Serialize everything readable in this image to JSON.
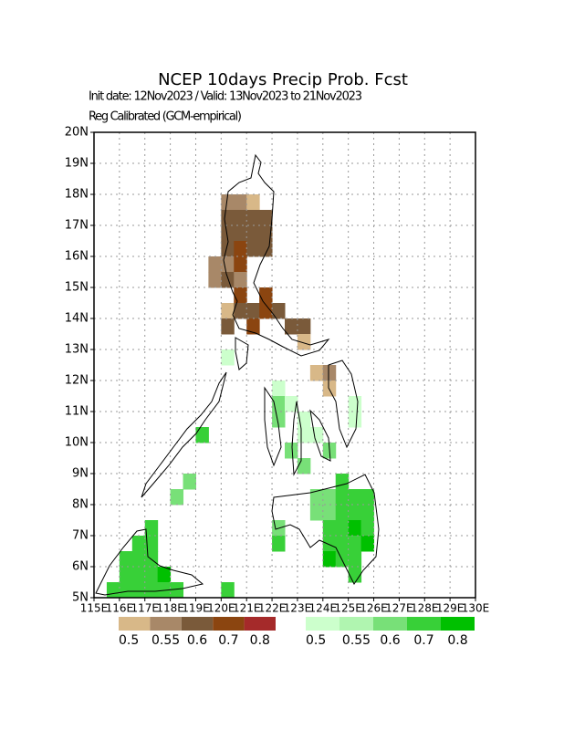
{
  "chart_data": {
    "type": "grid-map",
    "title": "NCEP 10days Precip Prob. Fcst",
    "subtitle": "Init date: 12Nov2023 / Valid: 13Nov2023 to 21Nov2023",
    "note": "Reg Calibrated (GCM-empirical)",
    "xlim": [
      115,
      130
    ],
    "ylim": [
      5,
      20
    ],
    "xticks": [
      {
        "value": 115,
        "label": "115E"
      },
      {
        "value": 116,
        "label": "116E"
      },
      {
        "value": 117,
        "label": "117E"
      },
      {
        "value": 118,
        "label": "118E"
      },
      {
        "value": 119,
        "label": "119E"
      },
      {
        "value": 120,
        "label": "120E"
      },
      {
        "value": 121,
        "label": "121E"
      },
      {
        "value": 122,
        "label": "122E"
      },
      {
        "value": 123,
        "label": "123E"
      },
      {
        "value": 124,
        "label": "124E"
      },
      {
        "value": 125,
        "label": "125E"
      },
      {
        "value": 126,
        "label": "126E"
      },
      {
        "value": 127,
        "label": "127E"
      },
      {
        "value": 128,
        "label": "128E"
      },
      {
        "value": 129,
        "label": "129E"
      },
      {
        "value": 130,
        "label": "130E"
      }
    ],
    "yticks": [
      {
        "value": 5,
        "label": "5N"
      },
      {
        "value": 6,
        "label": "6N"
      },
      {
        "value": 7,
        "label": "7N"
      },
      {
        "value": 8,
        "label": "8N"
      },
      {
        "value": 9,
        "label": "9N"
      },
      {
        "value": 10,
        "label": "10N"
      },
      {
        "value": 11,
        "label": "11N"
      },
      {
        "value": 12,
        "label": "12N"
      },
      {
        "value": 13,
        "label": "13N"
      },
      {
        "value": 14,
        "label": "14N"
      },
      {
        "value": 15,
        "label": "15N"
      },
      {
        "value": 16,
        "label": "16N"
      },
      {
        "value": 17,
        "label": "17N"
      },
      {
        "value": 18,
        "label": "18N"
      },
      {
        "value": 19,
        "label": "19N"
      },
      {
        "value": 20,
        "label": "20N"
      }
    ],
    "grid": true,
    "cell_size": 0.5,
    "series": [
      {
        "colors": [
          "#d8b888",
          "#a88868",
          "#7a5a3a",
          "#8b4510",
          "#a52a2a"
        ],
        "levels": [
          0.5,
          0.55,
          0.6,
          0.7,
          0.8
        ],
        "cells": [
          [
            120,
            17.5,
            0.55
          ],
          [
            120.5,
            17.5,
            0.55
          ],
          [
            121,
            17.5,
            0.5
          ],
          [
            120,
            17,
            0.6
          ],
          [
            120.5,
            17,
            0.6
          ],
          [
            121,
            17,
            0.6
          ],
          [
            121.5,
            17,
            0.6
          ],
          [
            120,
            16.5,
            0.6
          ],
          [
            120.5,
            16.5,
            0.6
          ],
          [
            121,
            16.5,
            0.6
          ],
          [
            121.5,
            16.5,
            0.6
          ],
          [
            120,
            16,
            0.6
          ],
          [
            120.5,
            16,
            0.7
          ],
          [
            121,
            16,
            0.6
          ],
          [
            121.5,
            16,
            0.6
          ],
          [
            119.5,
            15.5,
            0.55
          ],
          [
            120,
            15.5,
            0.55
          ],
          [
            120.5,
            15.5,
            0.7
          ],
          [
            119.5,
            15,
            0.55
          ],
          [
            120,
            15,
            0.6
          ],
          [
            120.5,
            15,
            0.55
          ],
          [
            120.5,
            14.5,
            0.7
          ],
          [
            121.5,
            14.5,
            0.7
          ],
          [
            120,
            14,
            0.5
          ],
          [
            120.5,
            14,
            0.6
          ],
          [
            121,
            14,
            0.6
          ],
          [
            121.5,
            14,
            0.7
          ],
          [
            122,
            14,
            0.6
          ],
          [
            120,
            13.5,
            0.6
          ],
          [
            121,
            13.5,
            0.7
          ],
          [
            122.5,
            13.5,
            0.6
          ],
          [
            123,
            13.5,
            0.6
          ],
          [
            123,
            13,
            0.5
          ],
          [
            123.5,
            12,
            0.5
          ],
          [
            124,
            12,
            0.55
          ],
          [
            124,
            11.5,
            0.5
          ]
        ]
      },
      {
        "colors": [
          "#ccffcc",
          "#b0f5b0",
          "#78e078",
          "#38d038",
          "#00c000"
        ],
        "levels": [
          0.5,
          0.55,
          0.6,
          0.7,
          0.8
        ],
        "cells": [
          [
            120,
            12.5,
            0.5
          ],
          [
            122,
            11.5,
            0.5
          ],
          [
            122,
            11,
            0.6
          ],
          [
            122.5,
            11,
            0.5
          ],
          [
            122,
            10.5,
            0.6
          ],
          [
            123,
            10.5,
            0.5
          ],
          [
            123,
            10,
            0.5
          ],
          [
            122.5,
            9.5,
            0.6
          ],
          [
            123,
            9,
            0.6
          ],
          [
            124,
            9.5,
            0.6
          ],
          [
            123.5,
            10,
            0.5
          ],
          [
            124.5,
            8.5,
            0.7
          ],
          [
            123.5,
            8,
            0.6
          ],
          [
            124,
            8,
            0.6
          ],
          [
            124.5,
            8,
            0.7
          ],
          [
            125,
            8,
            0.7
          ],
          [
            125.5,
            8,
            0.7
          ],
          [
            123.5,
            7.5,
            0.6
          ],
          [
            124,
            7.5,
            0.6
          ],
          [
            124.5,
            7.5,
            0.7
          ],
          [
            125,
            7.5,
            0.7
          ],
          [
            125.5,
            7.5,
            0.7
          ],
          [
            124,
            7,
            0.7
          ],
          [
            124.5,
            7,
            0.7
          ],
          [
            125,
            7,
            0.8
          ],
          [
            125.5,
            7,
            0.7
          ],
          [
            124,
            6.5,
            0.7
          ],
          [
            124.5,
            6.5,
            0.7
          ],
          [
            125,
            6.5,
            0.7
          ],
          [
            125.5,
            6.5,
            0.8
          ],
          [
            124,
            6,
            0.8
          ],
          [
            124.5,
            6,
            0.7
          ],
          [
            125,
            6,
            0.7
          ],
          [
            125,
            5.5,
            0.7
          ],
          [
            122,
            7,
            0.6
          ],
          [
            122,
            6.5,
            0.7
          ],
          [
            118.5,
            8.5,
            0.6
          ],
          [
            118,
            8,
            0.6
          ],
          [
            119,
            10,
            0.7
          ],
          [
            117,
            7,
            0.7
          ],
          [
            116.5,
            6.5,
            0.7
          ],
          [
            117,
            6.5,
            0.7
          ],
          [
            116,
            6,
            0.7
          ],
          [
            116.5,
            6,
            0.7
          ],
          [
            117,
            6,
            0.7
          ],
          [
            116,
            5.5,
            0.7
          ],
          [
            116.5,
            5.5,
            0.7
          ],
          [
            117,
            5.5,
            0.7
          ],
          [
            117.5,
            5.5,
            0.8
          ],
          [
            115.5,
            5,
            0.7
          ],
          [
            116,
            5,
            0.7
          ],
          [
            116.5,
            5,
            0.7
          ],
          [
            117,
            5,
            0.7
          ],
          [
            117.5,
            5,
            0.7
          ],
          [
            118,
            5,
            0.7
          ],
          [
            120,
            5,
            0.7
          ],
          [
            125,
            11,
            0.5
          ],
          [
            125,
            10.5,
            0.5
          ]
        ]
      }
    ]
  }
}
